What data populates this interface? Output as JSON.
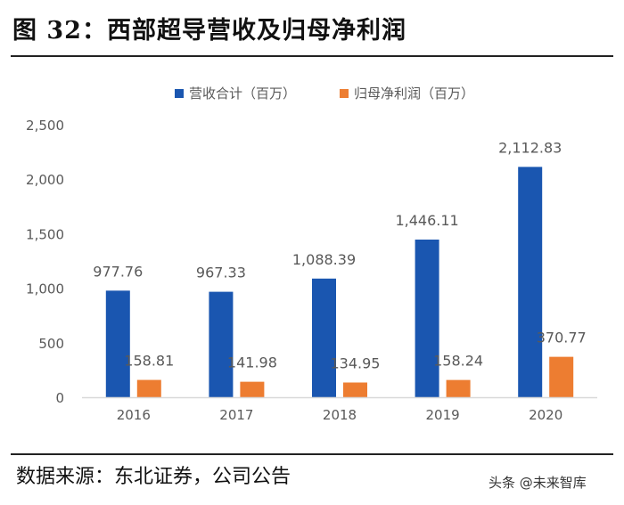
{
  "title": "图 32：西部超导营收及归母净利润",
  "source": "数据来源：东北证券，公司公告",
  "watermark": "头条 @未来智库",
  "colors": {
    "revenue": "#1a56b0",
    "profit": "#ed7d31",
    "axis": "#d9d9d9",
    "text": "#595959"
  },
  "chart_data": {
    "type": "bar",
    "categories": [
      "2016",
      "2017",
      "2018",
      "2019",
      "2020"
    ],
    "series": [
      {
        "name": "营收合计（百万）",
        "values": [
          977.76,
          967.33,
          1088.39,
          1446.11,
          2112.83
        ],
        "labels": [
          "977.76",
          "967.33",
          "1,088.39",
          "1,446.11",
          "2,112.83"
        ]
      },
      {
        "name": "归母净利润（百万）",
        "values": [
          158.81,
          141.98,
          134.95,
          158.24,
          370.77
        ],
        "labels": [
          "158.81",
          "141.98",
          "134.95",
          "158.24",
          "370.77"
        ]
      }
    ],
    "ylim": [
      0,
      2500
    ],
    "yticks": [
      0,
      500,
      1000,
      1500,
      2000,
      2500
    ],
    "ytick_labels": [
      "0",
      "500",
      "1,000",
      "1,500",
      "2,000",
      "2,500"
    ],
    "legend": "top-center",
    "grid": false
  }
}
